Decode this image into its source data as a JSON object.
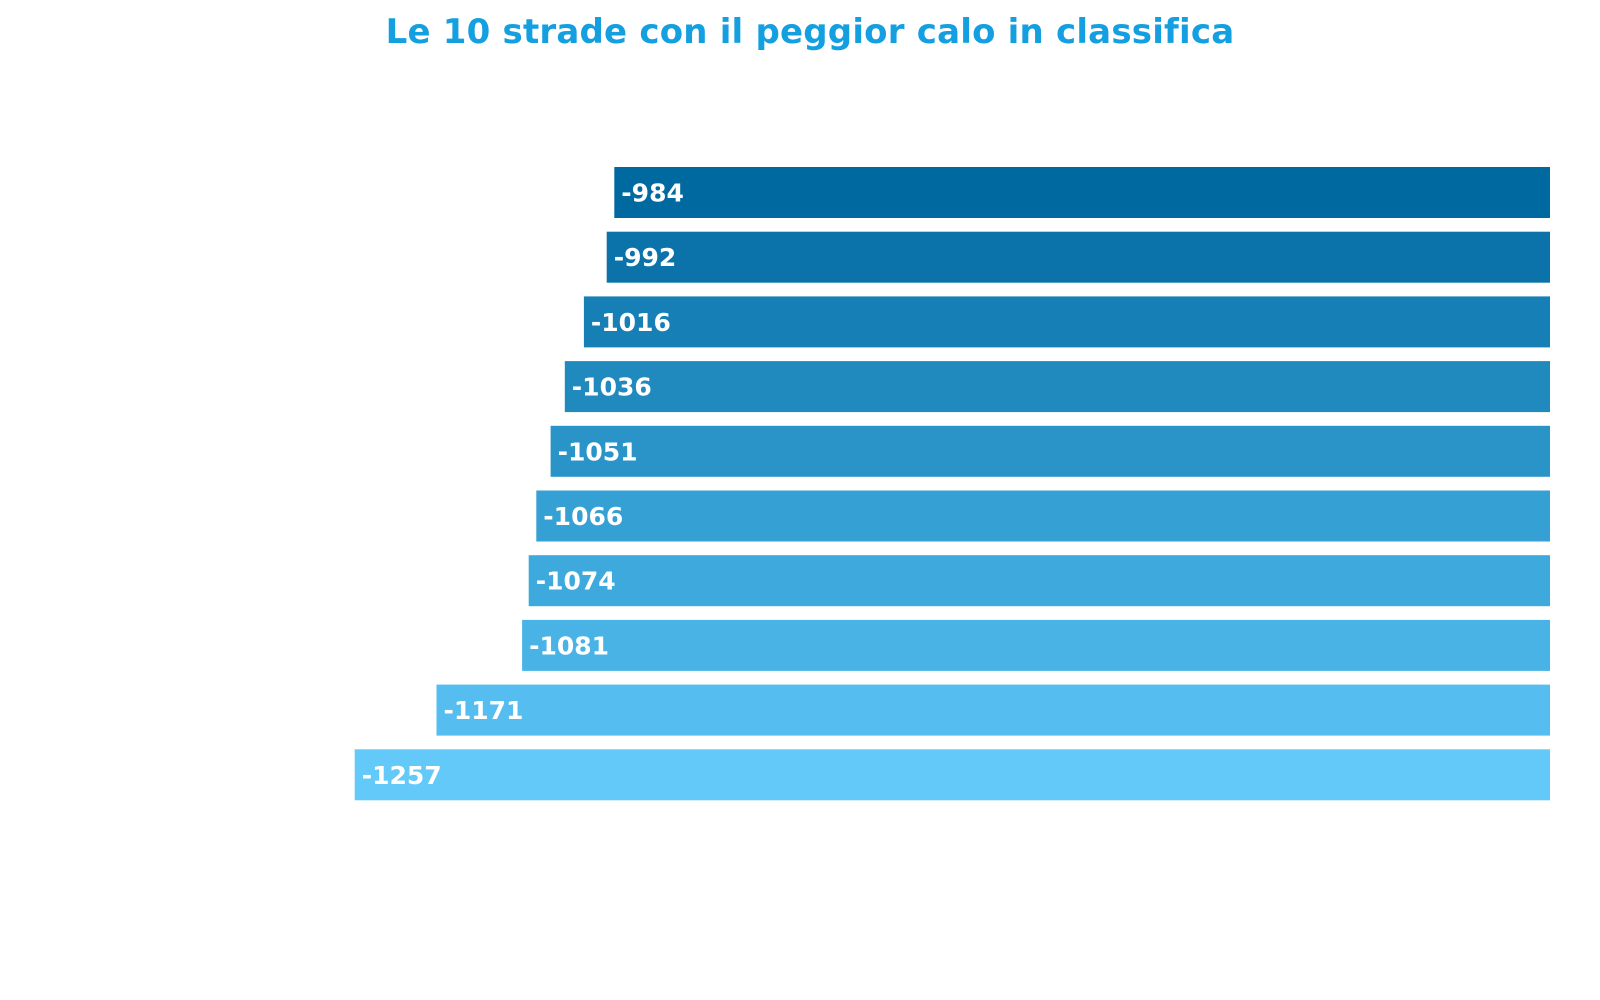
{
  "chart_data": {
    "type": "bar",
    "orientation": "horizontal",
    "title": "Le 10 strade con il peggior calo in classifica",
    "xlabel": "",
    "ylabel": "",
    "values": [
      -984,
      -992,
      -1016,
      -1036,
      -1051,
      -1066,
      -1074,
      -1081,
      -1171,
      -1257
    ],
    "data_labels": [
      "-984",
      "-992",
      "-1016",
      "-1036",
      "-1051",
      "-1066",
      "-1074",
      "-1081",
      "-1171",
      "-1257"
    ],
    "xlim": [
      -1630,
      0
    ],
    "grid": false,
    "legend": "none",
    "colors": [
      "#006aa0",
      "#0b73aa",
      "#1680b6",
      "#208abf",
      "#2a94c8",
      "#35a0d3",
      "#3ea9dc",
      "#49b3e6",
      "#55bdef",
      "#62c9f9"
    ]
  }
}
